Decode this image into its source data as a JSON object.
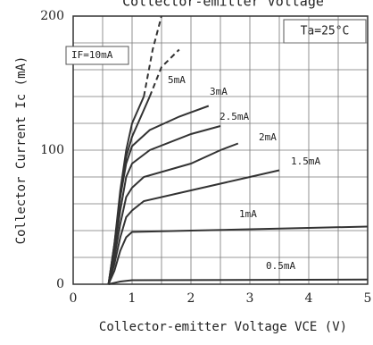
{
  "chart_data": {
    "type": "line",
    "title": "Collector-emitter Voltage",
    "xlabel": "Collector-emitter Voltage VCE (V)",
    "ylabel": "Collector Current Ic (mA)",
    "annotation": "Ta=25°C",
    "xlim": [
      0,
      5
    ],
    "ylim": [
      0,
      200
    ],
    "xticks": [
      0,
      1,
      2,
      3,
      4,
      5
    ],
    "yticks": [
      0,
      100,
      200
    ],
    "grid": true,
    "color": "#333333",
    "series": [
      {
        "name": "IF=10mA",
        "line_style": "solid",
        "x": [
          0.6,
          0.7,
          0.8,
          0.9,
          1,
          1.2
        ],
        "values": [
          0,
          30,
          70,
          100,
          120,
          140
        ]
      },
      {
        "line_style": "dashed",
        "x": [
          1.2,
          1.35,
          1.5
        ],
        "values": [
          140,
          175,
          200
        ]
      },
      {
        "name": "5mA",
        "line_style": "solid",
        "x": [
          0.6,
          0.7,
          0.8,
          0.9,
          1,
          1.2,
          1.3
        ],
        "values": [
          0,
          28,
          65,
          95,
          110,
          130,
          140
        ]
      },
      {
        "line_style": "dashed",
        "x": [
          1.3,
          1.5,
          1.8
        ],
        "values": [
          140,
          162,
          175
        ]
      },
      {
        "name": "3mA",
        "line_style": "solid",
        "x": [
          0.6,
          0.7,
          0.8,
          0.9,
          1,
          1.3,
          1.8,
          2.3
        ],
        "values": [
          0,
          30,
          65,
          90,
          103,
          115,
          125,
          133
        ]
      },
      {
        "name": "2.5mA",
        "line_style": "solid",
        "x": [
          0.6,
          0.7,
          0.8,
          0.9,
          1,
          1.3,
          2,
          2.5
        ],
        "values": [
          0,
          25,
          55,
          80,
          90,
          100,
          112,
          118
        ]
      },
      {
        "name": "2mA",
        "line_style": "solid",
        "x": [
          0.6,
          0.7,
          0.8,
          0.9,
          1,
          1.2,
          2,
          2.5,
          2.8
        ],
        "values": [
          0,
          20,
          45,
          65,
          72,
          80,
          90,
          100,
          105
        ]
      },
      {
        "name": "1.5mA",
        "line_style": "solid",
        "x": [
          0.6,
          0.7,
          0.8,
          0.9,
          1,
          1.2,
          2,
          3,
          3.5
        ],
        "values": [
          0,
          15,
          35,
          50,
          55,
          62,
          70,
          80,
          85
        ]
      },
      {
        "name": "1mA",
        "line_style": "solid",
        "x": [
          0.6,
          0.7,
          0.8,
          0.9,
          1,
          2,
          3,
          4,
          5
        ],
        "values": [
          0,
          10,
          25,
          35,
          39,
          40,
          41,
          42,
          43
        ]
      },
      {
        "name": "0.5mA",
        "line_style": "solid",
        "x": [
          0.6,
          0.8,
          1,
          5
        ],
        "values": [
          0,
          2,
          3,
          3.5
        ]
      }
    ]
  }
}
